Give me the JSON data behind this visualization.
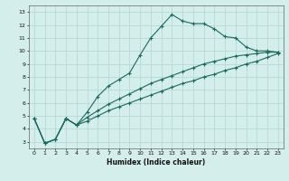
{
  "xlabel": "Humidex (Indice chaleur)",
  "bg_color": "#d4eeeb",
  "line_color": "#1a6b5e",
  "grid_color": "#b8d9d5",
  "xlim": [
    -0.5,
    23.5
  ],
  "ylim": [
    2.5,
    13.5
  ],
  "xticks": [
    0,
    1,
    2,
    3,
    4,
    5,
    6,
    7,
    8,
    9,
    10,
    11,
    12,
    13,
    14,
    15,
    16,
    17,
    18,
    19,
    20,
    21,
    22,
    23
  ],
  "yticks": [
    3,
    4,
    5,
    6,
    7,
    8,
    9,
    10,
    11,
    12,
    13
  ],
  "line1_x": [
    0,
    1,
    2,
    3,
    4,
    5,
    6,
    7,
    8,
    9,
    10,
    11,
    12,
    13,
    14,
    15,
    16,
    17,
    18,
    19,
    20,
    21,
    22,
    23
  ],
  "line1_y": [
    4.8,
    2.9,
    3.2,
    4.8,
    4.3,
    5.3,
    6.5,
    7.3,
    7.8,
    8.3,
    9.7,
    11.0,
    11.9,
    12.8,
    12.3,
    12.1,
    12.1,
    11.7,
    11.1,
    11.0,
    10.3,
    10.0,
    10.0,
    9.9
  ],
  "line2_x": [
    0,
    1,
    2,
    3,
    4,
    5,
    6,
    7,
    8,
    9,
    10,
    11,
    12,
    13,
    14,
    15,
    16,
    17,
    18,
    19,
    20,
    21,
    22,
    23
  ],
  "line2_y": [
    4.8,
    2.9,
    3.2,
    4.8,
    4.3,
    4.9,
    5.4,
    5.9,
    6.3,
    6.7,
    7.1,
    7.5,
    7.8,
    8.1,
    8.4,
    8.7,
    9.0,
    9.2,
    9.4,
    9.6,
    9.7,
    9.8,
    9.9,
    9.9
  ],
  "line3_x": [
    0,
    1,
    2,
    3,
    4,
    5,
    6,
    7,
    8,
    9,
    10,
    11,
    12,
    13,
    14,
    15,
    16,
    17,
    18,
    19,
    20,
    21,
    22,
    23
  ],
  "line3_y": [
    4.8,
    2.9,
    3.2,
    4.8,
    4.3,
    4.6,
    5.0,
    5.4,
    5.7,
    6.0,
    6.3,
    6.6,
    6.9,
    7.2,
    7.5,
    7.7,
    8.0,
    8.2,
    8.5,
    8.7,
    9.0,
    9.2,
    9.5,
    9.8
  ]
}
